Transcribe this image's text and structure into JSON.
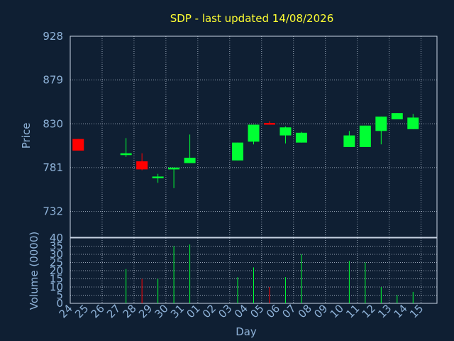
{
  "chart_data": [
    {
      "type": "candlestick",
      "title": "SDP - last updated 14/08/2026",
      "ylabel": "Price",
      "ylim": [
        732,
        928
      ],
      "ymin_plot": 703,
      "yticks": [
        "928",
        "879",
        "830",
        "781",
        "732"
      ],
      "grid": true,
      "colors": {
        "up": "#00ff33",
        "down": "#ff0000"
      },
      "x": [
        "24",
        "25",
        "26",
        "27",
        "28",
        "29",
        "30",
        "31",
        "01",
        "02",
        "03",
        "04",
        "05",
        "06",
        "07",
        "08",
        "09",
        "10",
        "11",
        "12",
        "13",
        "14",
        "15"
      ],
      "series": [
        {
          "x": "24",
          "open": 813,
          "high": 813,
          "low": 800,
          "close": 800
        },
        {
          "x": "27",
          "open": 795,
          "high": 814,
          "low": 793,
          "close": 797
        },
        {
          "x": "28",
          "open": 788,
          "high": 797,
          "low": 778,
          "close": 779
        },
        {
          "x": "29",
          "open": 769,
          "high": 774,
          "low": 764,
          "close": 771
        },
        {
          "x": "30",
          "open": 779,
          "high": 781,
          "low": 758,
          "close": 781
        },
        {
          "x": "31",
          "open": 786,
          "high": 818,
          "low": 786,
          "close": 792
        },
        {
          "x": "03",
          "open": 789,
          "high": 809,
          "low": 789,
          "close": 809
        },
        {
          "x": "04",
          "open": 810,
          "high": 829,
          "low": 807,
          "close": 829
        },
        {
          "x": "05",
          "open": 831,
          "high": 833,
          "low": 829,
          "close": 829
        },
        {
          "x": "06",
          "open": 817,
          "high": 827,
          "low": 808,
          "close": 826
        },
        {
          "x": "07",
          "open": 809,
          "high": 821,
          "low": 809,
          "close": 820
        },
        {
          "x": "10",
          "open": 804,
          "high": 822,
          "low": 804,
          "close": 817
        },
        {
          "x": "11",
          "open": 804,
          "high": 828,
          "low": 804,
          "close": 828
        },
        {
          "x": "12",
          "open": 822,
          "high": 838,
          "low": 807,
          "close": 838
        },
        {
          "x": "13",
          "open": 835,
          "high": 842,
          "low": 835,
          "close": 842
        },
        {
          "x": "14",
          "open": 824,
          "high": 841,
          "low": 824,
          "close": 837
        }
      ]
    },
    {
      "type": "bar",
      "xlabel": "Day",
      "ylabel": "Volume (0000)",
      "ylim": [
        0,
        40
      ],
      "yticks": [
        "40",
        "35",
        "30",
        "25",
        "20",
        "15",
        "10",
        "5",
        "0"
      ],
      "grid": true,
      "categories": [
        "24",
        "25",
        "26",
        "27",
        "28",
        "29",
        "30",
        "31",
        "01",
        "02",
        "03",
        "04",
        "05",
        "06",
        "07",
        "08",
        "09",
        "10",
        "11",
        "12",
        "13",
        "14",
        "15"
      ],
      "bars": [
        {
          "x": "24",
          "value": 0,
          "color": "#ff0000"
        },
        {
          "x": "27",
          "value": 21,
          "color": "#00ff33"
        },
        {
          "x": "28",
          "value": 15,
          "color": "#ff0000"
        },
        {
          "x": "29",
          "value": 15,
          "color": "#00ff33"
        },
        {
          "x": "30",
          "value": 35,
          "color": "#00ff33"
        },
        {
          "x": "31",
          "value": 36,
          "color": "#00ff33"
        },
        {
          "x": "03",
          "value": 16,
          "color": "#00ff33"
        },
        {
          "x": "04",
          "value": 22,
          "color": "#00ff33"
        },
        {
          "x": "05",
          "value": 10,
          "color": "#ff0000"
        },
        {
          "x": "06",
          "value": 16,
          "color": "#00ff33"
        },
        {
          "x": "07",
          "value": 30,
          "color": "#00ff33"
        },
        {
          "x": "10",
          "value": 26,
          "color": "#00ff33"
        },
        {
          "x": "11",
          "value": 25,
          "color": "#00ff33"
        },
        {
          "x": "12",
          "value": 10,
          "color": "#00ff33"
        },
        {
          "x": "13",
          "value": 5,
          "color": "#00ff33"
        },
        {
          "x": "14",
          "value": 7,
          "color": "#00ff33"
        }
      ]
    }
  ]
}
